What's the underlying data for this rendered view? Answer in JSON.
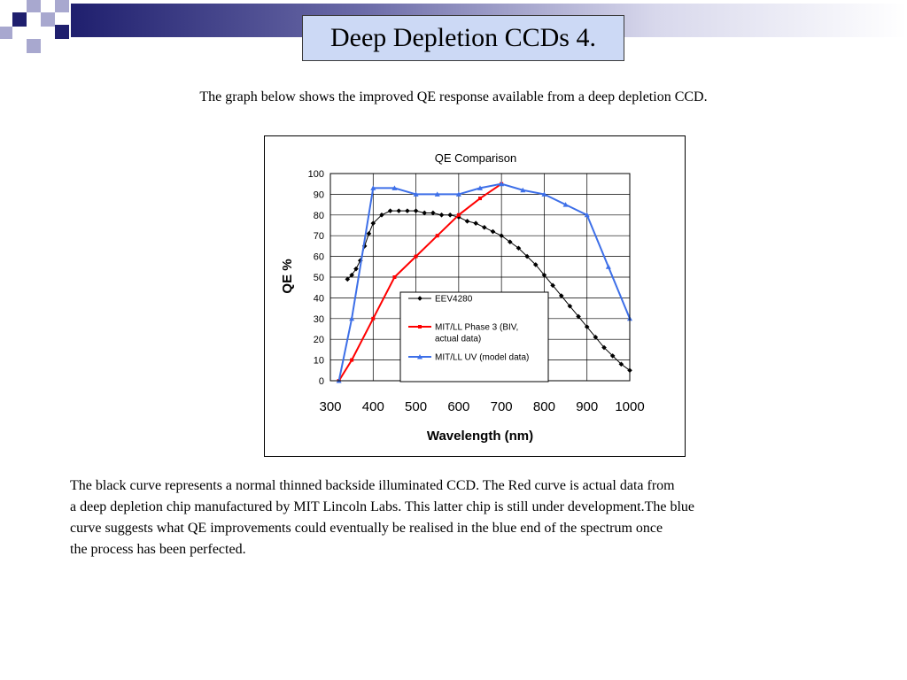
{
  "slide": {
    "title": "Deep Depletion CCDs 4.",
    "intro": "The graph below shows the improved QE response available from a deep depletion CCD.",
    "body_lines": [
      "The black curve represents a normal thinned backside illuminated CCD. The Red curve is actual data from",
      "a deep depletion chip manufactured by MIT Lincoln Labs. This latter chip is still under development.The blue",
      "curve suggests what QE improvements could eventually be realised in the blue end of the spectrum once",
      "the process has been perfected."
    ],
    "colors": {
      "banner_navy": "#1f1f6e",
      "banner_light": "#a8a8cf",
      "title_fill": "#ccd9f5"
    }
  },
  "chart_data": {
    "type": "line",
    "title": "QE Comparison",
    "xlabel": "Wavelength (nm)",
    "ylabel": "QE %",
    "xlim": [
      300,
      1000
    ],
    "ylim": [
      0,
      100
    ],
    "xticks": [
      300,
      400,
      500,
      600,
      700,
      800,
      900,
      1000
    ],
    "yticks": [
      0,
      10,
      20,
      30,
      40,
      50,
      60,
      70,
      80,
      90,
      100
    ],
    "grid": true,
    "legend_position": "center-inside",
    "series": [
      {
        "name": "EEV4280",
        "color": "#000000",
        "marker": "diamond",
        "x": [
          340,
          350,
          360,
          370,
          380,
          390,
          400,
          420,
          440,
          460,
          480,
          500,
          520,
          540,
          560,
          580,
          600,
          620,
          640,
          660,
          680,
          700,
          720,
          740,
          760,
          780,
          800,
          820,
          840,
          860,
          880,
          900,
          920,
          940,
          960,
          980,
          1000
        ],
        "y": [
          49,
          51,
          54,
          58,
          65,
          71,
          76,
          80,
          82,
          82,
          82,
          82,
          81,
          81,
          80,
          80,
          79,
          77,
          76,
          74,
          72,
          70,
          67,
          64,
          60,
          56,
          51,
          46,
          41,
          36,
          31,
          26,
          21,
          16,
          12,
          8,
          5
        ]
      },
      {
        "name": "MIT/LL Phase 3 (BIV, actual data)",
        "color": "#ff0000",
        "marker": "square",
        "x": [
          320,
          350,
          400,
          450,
          500,
          550,
          600,
          650,
          700
        ],
        "y": [
          0,
          10,
          30,
          50,
          60,
          70,
          80,
          88,
          95
        ]
      },
      {
        "name": "MIT/LL UV (model data)",
        "color": "#3d6fe8",
        "marker": "triangle",
        "x": [
          320,
          350,
          400,
          450,
          500,
          550,
          600,
          650,
          700,
          750,
          800,
          850,
          900,
          950,
          1000
        ],
        "y": [
          0,
          30,
          93,
          93,
          90,
          90,
          90,
          93,
          95,
          92,
          90,
          85,
          80,
          55,
          30
        ]
      }
    ]
  }
}
